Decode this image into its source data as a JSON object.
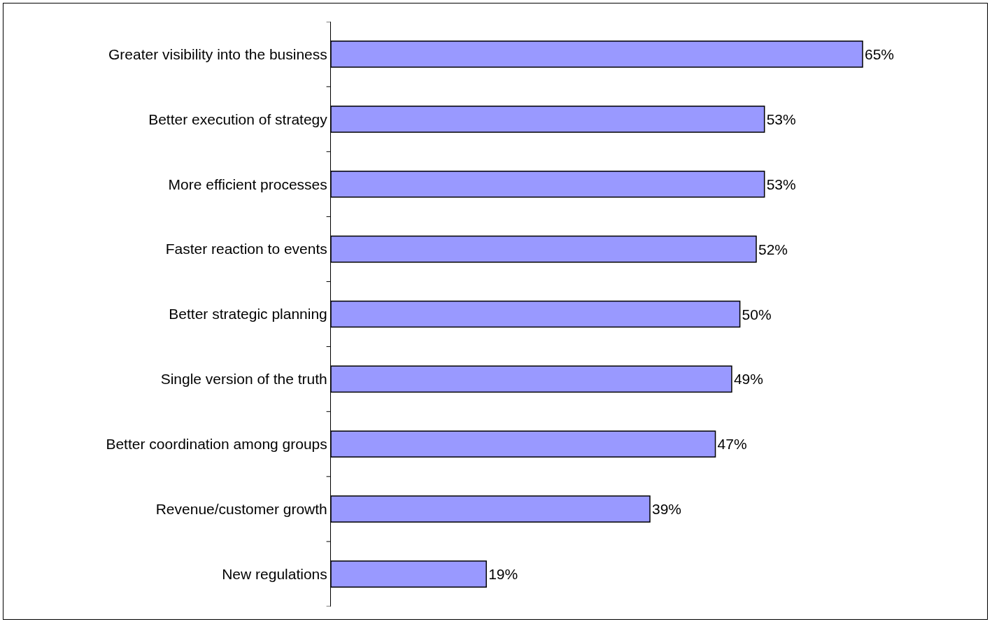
{
  "chart_data": {
    "type": "bar",
    "orientation": "horizontal",
    "categories": [
      "Greater visibility into the business",
      "Better execution of strategy",
      "More efficient processes",
      "Faster reaction to events",
      "Better strategic planning",
      "Single version of the truth",
      "Better coordination among groups",
      "Revenue/customer growth",
      "New regulations"
    ],
    "values": [
      65,
      53,
      53,
      52,
      50,
      49,
      47,
      39,
      19
    ],
    "value_labels": [
      "65%",
      "53%",
      "53%",
      "52%",
      "50%",
      "49%",
      "47%",
      "39%",
      "19%"
    ],
    "color": "#9999ff",
    "tick_labels": "y"
  }
}
